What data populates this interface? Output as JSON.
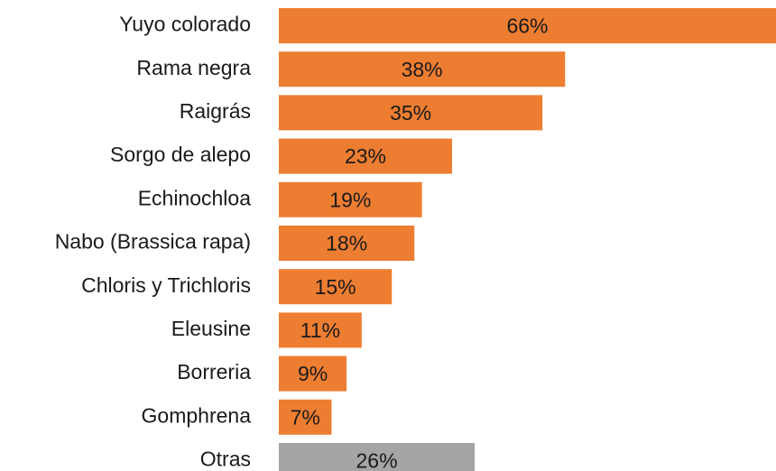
{
  "chart_data": {
    "type": "barh",
    "categories": [
      "Yuyo colorado",
      "Rama negra",
      "Raigrás",
      "Sorgo de alepo",
      "Echinochloa",
      "Nabo (Brassica rapa)",
      "Chloris y Trichloris",
      "Eleusine",
      "Borreria",
      "Gomphrena",
      "Otras"
    ],
    "values": [
      66,
      38,
      35,
      23,
      19,
      18,
      15,
      11,
      9,
      7,
      26
    ],
    "value_labels": [
      "66%",
      "38%",
      "35%",
      "23%",
      "19%",
      "18%",
      "15%",
      "11%",
      "9%",
      "7%",
      "26%"
    ],
    "colors": [
      "#ed7d31",
      "#ed7d31",
      "#ed7d31",
      "#ed7d31",
      "#ed7d31",
      "#ed7d31",
      "#ed7d31",
      "#ed7d31",
      "#ed7d31",
      "#ed7d31",
      "#a5a5a5"
    ],
    "xlim": [
      0,
      66
    ]
  }
}
